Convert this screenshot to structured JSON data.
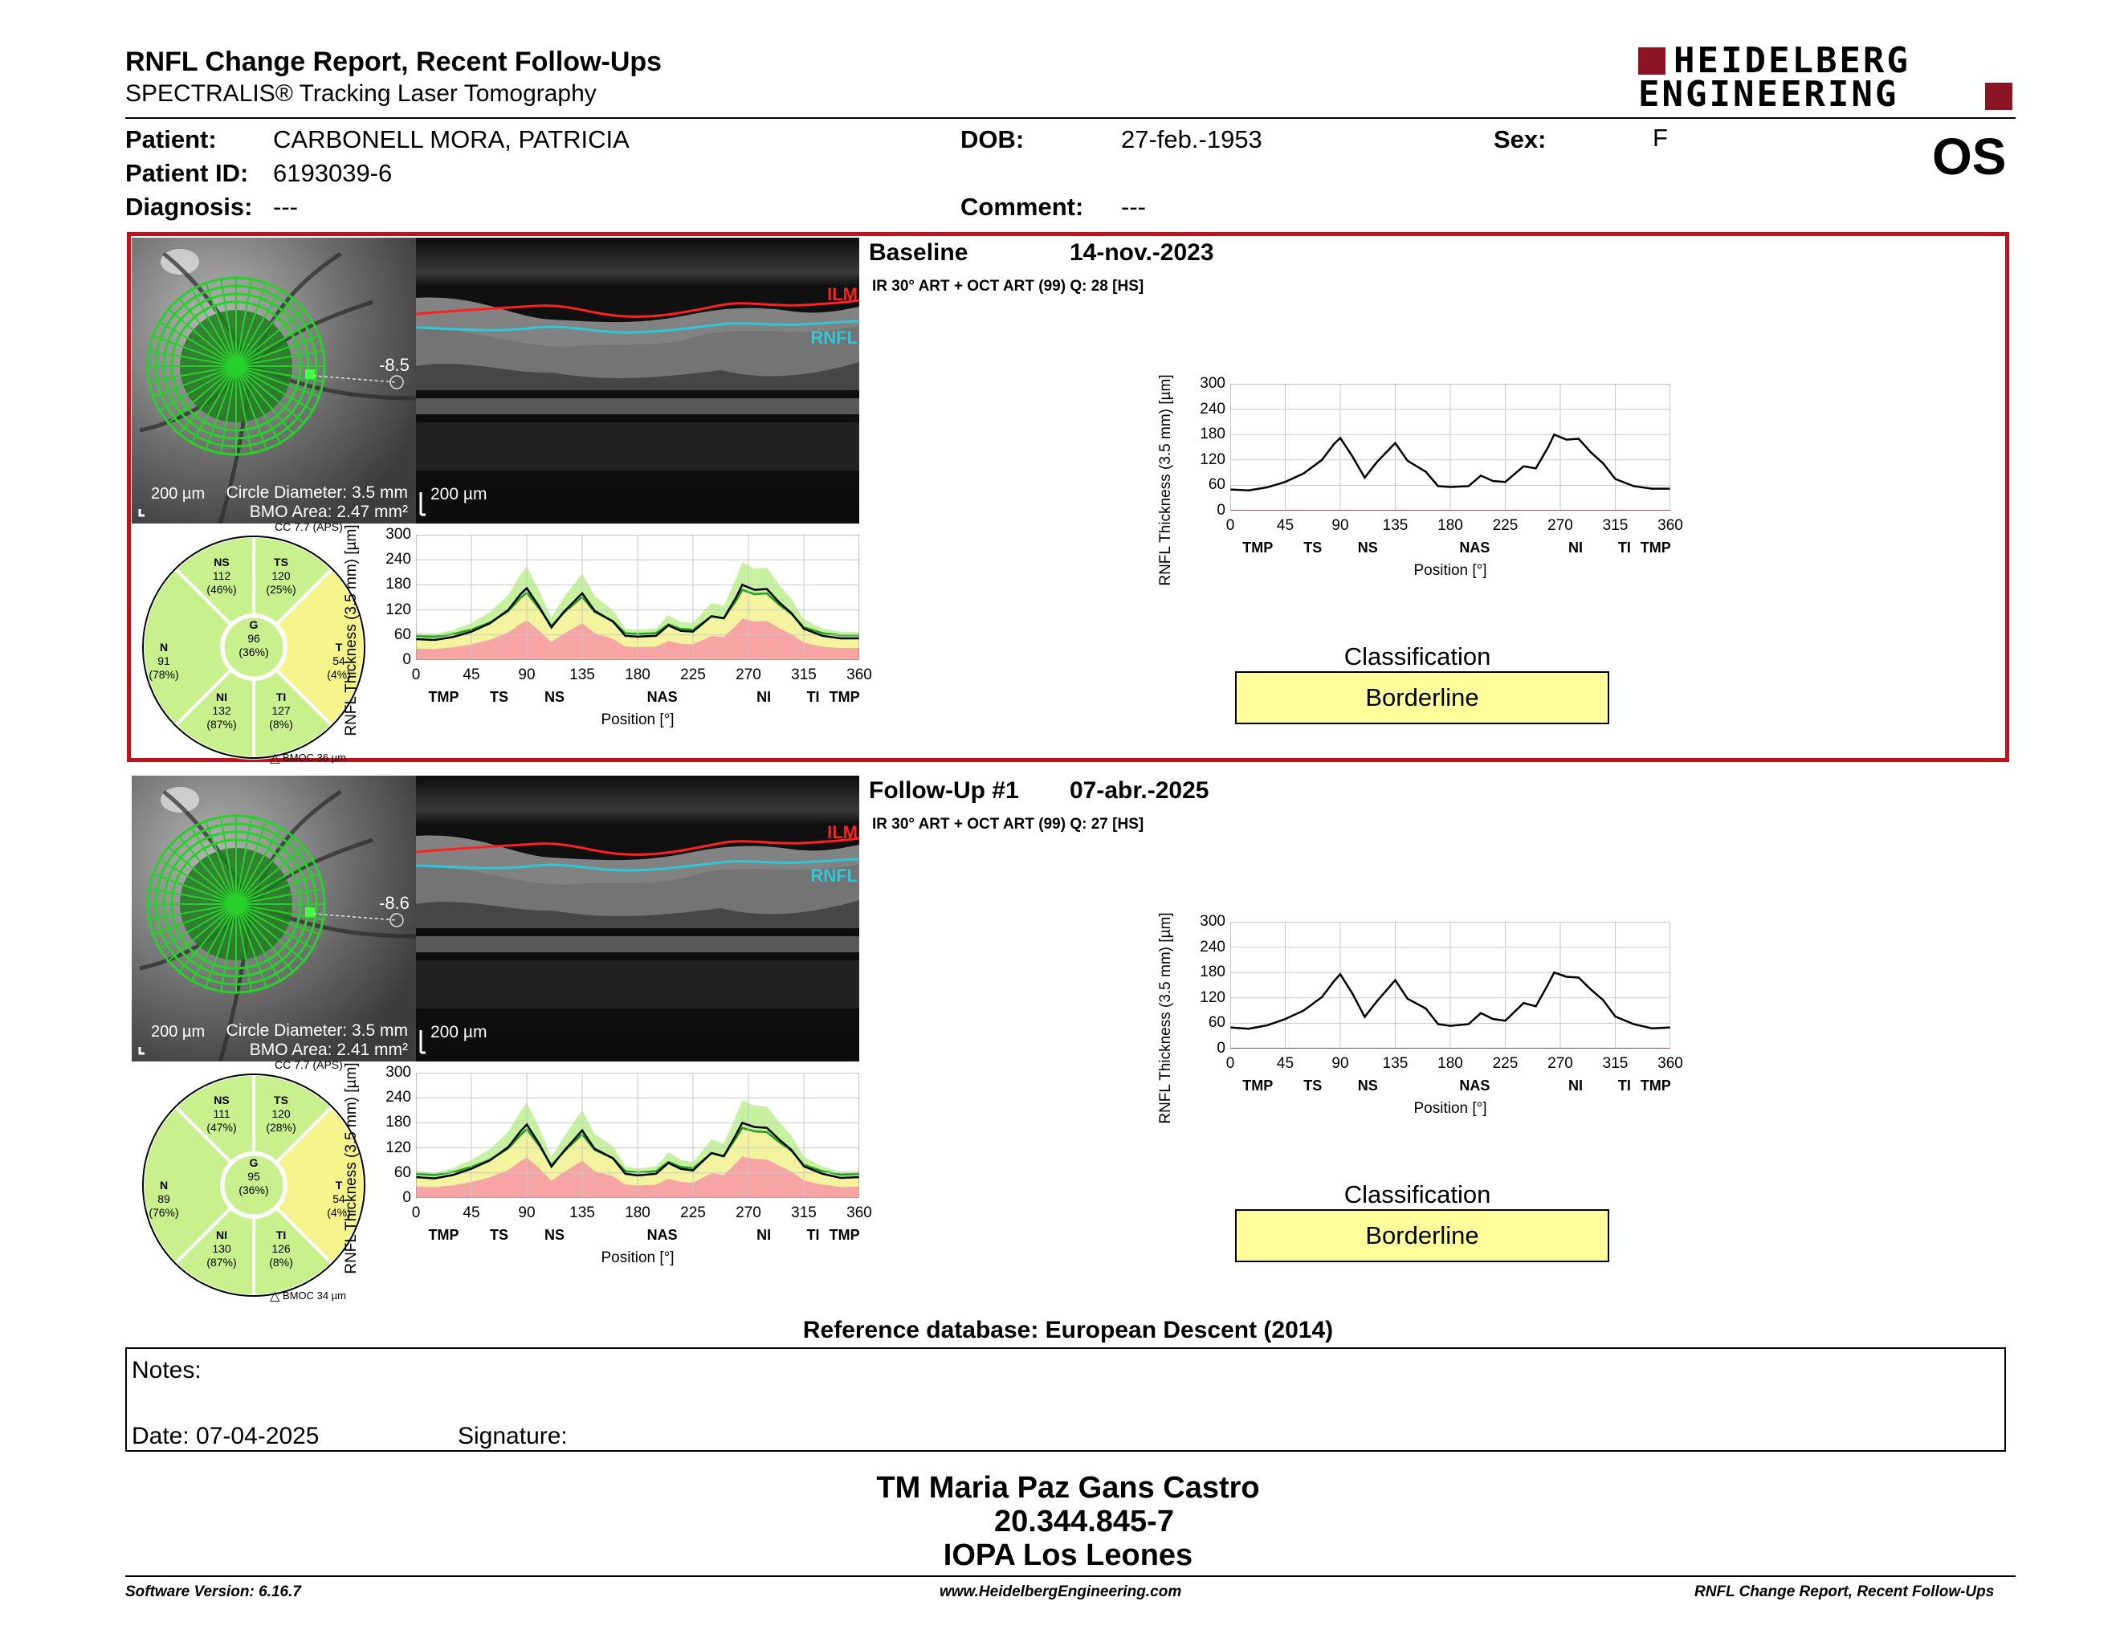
{
  "header": {
    "title": "RNFL Change Report, Recent Follow-Ups",
    "subtitle": "SPECTRALIS® Tracking Laser Tomography",
    "logo_line1": "HEIDELBERG",
    "logo_line2": "ENGINEERING",
    "eye": "OS"
  },
  "patient": {
    "patient_label": "Patient:",
    "patient_value": "CARBONELL MORA, PATRICIA",
    "id_label": "Patient ID:",
    "id_value": "6193039-6",
    "diagnosis_label": "Diagnosis:",
    "diagnosis_value": "---",
    "dob_label": "DOB:",
    "dob_value": "27-feb.-1953",
    "comment_label": "Comment:",
    "comment_value": "---",
    "sex_label": "Sex:",
    "sex_value": "F"
  },
  "exams": [
    {
      "title": "Baseline",
      "date": "14-nov.-2023",
      "protocol": "IR 30° ART + OCT ART (99) Q: 28 [HS]",
      "fundus_scale": "200 µm",
      "circle_diameter": "Circle Diameter: 3.5 mm",
      "bmo_area": "BMO Area: 2.47 mm²",
      "angle": "-8.5",
      "oct_scale": "200 µm",
      "ilm": "ILM",
      "rnfl": "RNFL",
      "cc": "CC 7.7 (APS)",
      "bmoc": "BMOC 36 µm",
      "sectors": {
        "NS": {
          "name": "NS",
          "value": "112",
          "pct": "(46%)"
        },
        "TS": {
          "name": "TS",
          "value": "120",
          "pct": "(25%)"
        },
        "N": {
          "name": "N",
          "value": "91",
          "pct": "(78%)"
        },
        "G": {
          "name": "G",
          "value": "96",
          "pct": "(36%)"
        },
        "T": {
          "name": "T",
          "value": "54",
          "pct": "(4%)"
        },
        "NI": {
          "name": "NI",
          "value": "132",
          "pct": "(87%)"
        },
        "TI": {
          "name": "TI",
          "value": "127",
          "pct": "(8%)"
        }
      },
      "classification_label": "Classification",
      "classification": "Borderline"
    },
    {
      "title": "Follow-Up #1",
      "date": "07-abr.-2025",
      "protocol": "IR 30° ART + OCT ART (99) Q: 27 [HS]",
      "fundus_scale": "200 µm",
      "circle_diameter": "Circle Diameter: 3.5 mm",
      "bmo_area": "BMO Area: 2.41 mm²",
      "angle": "-8.6",
      "oct_scale": "200 µm",
      "ilm": "ILM",
      "rnfl": "RNFL",
      "cc": "CC 7.7 (APS)",
      "bmoc": "BMOC 34 µm",
      "sectors": {
        "NS": {
          "name": "NS",
          "value": "111",
          "pct": "(47%)"
        },
        "TS": {
          "name": "TS",
          "value": "120",
          "pct": "(28%)"
        },
        "N": {
          "name": "N",
          "value": "89",
          "pct": "(76%)"
        },
        "G": {
          "name": "G",
          "value": "95",
          "pct": "(36%)"
        },
        "T": {
          "name": "T",
          "value": "54",
          "pct": "(4%)"
        },
        "NI": {
          "name": "NI",
          "value": "130",
          "pct": "(87%)"
        },
        "TI": {
          "name": "TI",
          "value": "126",
          "pct": "(8%)"
        }
      },
      "classification_label": "Classification",
      "classification": "Borderline"
    }
  ],
  "chart_data": [
    {
      "type": "line",
      "title": "",
      "xlabel": "Position [°]",
      "ylabel": "RNFL Thickness (3.5 mm) [µm]",
      "xlim": [
        0,
        360
      ],
      "ylim": [
        0,
        300
      ],
      "xticks": [
        "0",
        "45",
        "90",
        "135",
        "180",
        "225",
        "270",
        "315",
        "360"
      ],
      "yticks": [
        "0",
        "60",
        "120",
        "180",
        "240",
        "300"
      ],
      "sector_labels": [
        "TMP",
        "TS",
        "NS",
        "NAS",
        "NI",
        "TI",
        "TMP"
      ],
      "series": [
        {
          "x": [
            0,
            15,
            30,
            45,
            60,
            75,
            85,
            90,
            100,
            110,
            120,
            135,
            145,
            160,
            170,
            180,
            195,
            205,
            215,
            225,
            240,
            250,
            260,
            265,
            275,
            285,
            295,
            305,
            315,
            330,
            345,
            360
          ],
          "values": [
            50,
            48,
            55,
            68,
            88,
            120,
            158,
            172,
            128,
            78,
            115,
            160,
            118,
            92,
            58,
            56,
            58,
            83,
            70,
            68,
            105,
            100,
            150,
            180,
            168,
            170,
            138,
            112,
            75,
            58,
            52,
            52
          ]
        }
      ]
    },
    {
      "type": "line",
      "title": "",
      "xlabel": "Position [°]",
      "ylabel": "RNFL Thickness (3.5 mm) [µm]",
      "xlim": [
        0,
        360
      ],
      "ylim": [
        0,
        300
      ],
      "xticks": [
        "0",
        "45",
        "90",
        "135",
        "180",
        "225",
        "270",
        "315",
        "360"
      ],
      "yticks": [
        "0",
        "60",
        "120",
        "180",
        "240",
        "300"
      ],
      "sector_labels": [
        "TMP",
        "TS",
        "NS",
        "NAS",
        "NI",
        "TI",
        "TMP"
      ],
      "series": [
        {
          "x": [
            0,
            15,
            30,
            45,
            60,
            75,
            85,
            90,
            100,
            110,
            120,
            135,
            145,
            160,
            170,
            180,
            195,
            205,
            215,
            225,
            240,
            250,
            260,
            265,
            275,
            285,
            295,
            305,
            315,
            330,
            345,
            360
          ],
          "values": [
            50,
            47,
            55,
            70,
            90,
            122,
            160,
            176,
            130,
            75,
            112,
            162,
            118,
            95,
            58,
            54,
            58,
            84,
            70,
            66,
            108,
            100,
            152,
            180,
            170,
            168,
            140,
            115,
            76,
            58,
            48,
            50
          ]
        }
      ]
    }
  ],
  "footer": {
    "reference": "Reference database: European Descent (2014)",
    "notes_label": "Notes:",
    "date_label": "Date: 07-04-2025",
    "signature_label": "Signature:",
    "sig_name": "TM Maria Paz Gans Castro",
    "sig_id": "20.344.845-7",
    "sig_org": "IOPA Los Leones",
    "software": "Software Version: 6.16.7",
    "website": "www.HeidelbergEngineering.com",
    "report_name": "RNFL Change Report, Recent Follow-Ups"
  }
}
